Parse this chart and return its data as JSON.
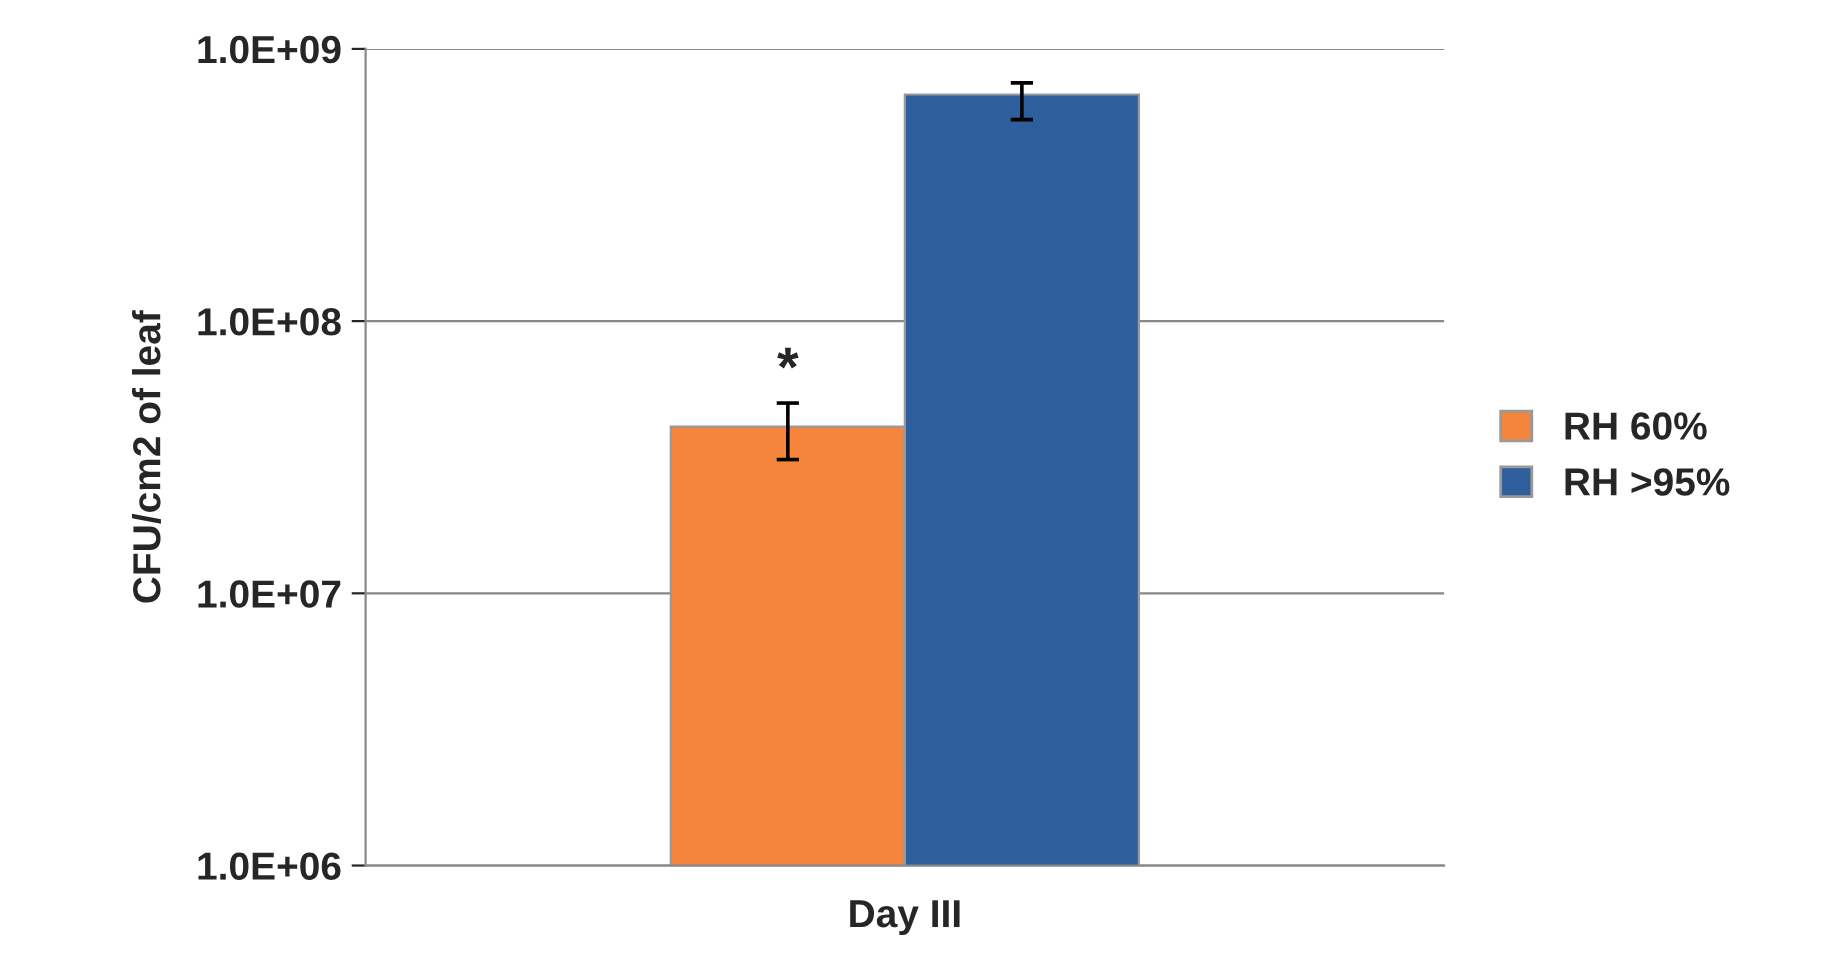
{
  "chart_data": {
    "type": "bar",
    "categories": [
      "Day III"
    ],
    "ylabel": "CFU/cm2 of leaf",
    "series": [
      {
        "name": "RH 60%",
        "color": "#f5853a",
        "values": [
          41000000
        ],
        "errors": [
          [
            31000000,
            50000000
          ]
        ]
      },
      {
        "name": "RH >95%",
        "color": "#2f5e9c",
        "values": [
          680000000
        ],
        "errors": [
          [
            550000000,
            750000000
          ]
        ]
      }
    ],
    "log": "y",
    "ylim": [
      1000000,
      1000000000
    ],
    "yticks": [
      {
        "value": 1000000,
        "label": "1.0E+06"
      },
      {
        "value": 10000000,
        "label": "1.0E+07"
      },
      {
        "value": 100000000,
        "label": "1.0E+08"
      },
      {
        "value": 1000000000,
        "label": "1.0E+09"
      }
    ],
    "grid": "y",
    "legend": "right",
    "annotations": [
      "*"
    ]
  }
}
